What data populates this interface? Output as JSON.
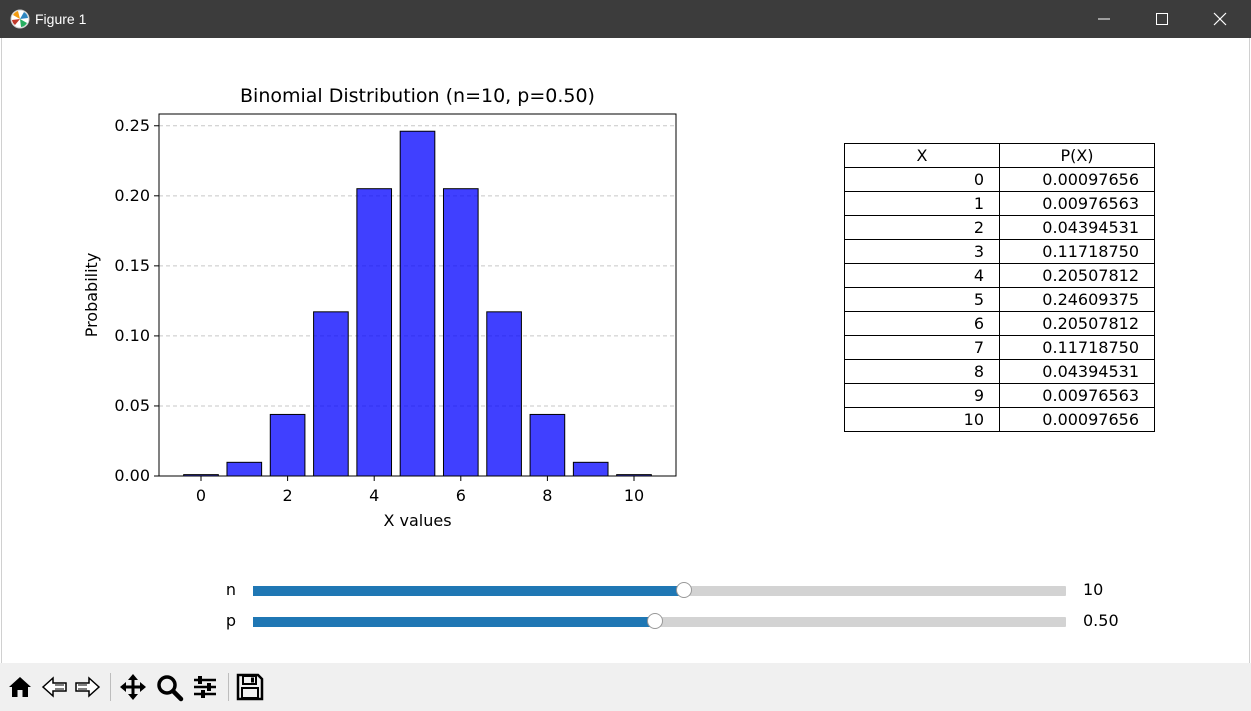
{
  "window": {
    "title": "Figure 1"
  },
  "icons": {
    "app": "matplotlib-icon",
    "minimize": "minimize-icon",
    "maximize": "maximize-icon",
    "close": "close-icon"
  },
  "chart_data": {
    "type": "bar",
    "title": "Binomial Distribution (n=10, p=0.50)",
    "xlabel": "X values",
    "ylabel": "Probability",
    "categories": [
      0,
      1,
      2,
      3,
      4,
      5,
      6,
      7,
      8,
      9,
      10
    ],
    "values": [
      0.00097656,
      0.00976563,
      0.04394531,
      0.1171875,
      0.20507812,
      0.24609375,
      0.20507812,
      0.1171875,
      0.04394531,
      0.00976563,
      0.00097656
    ],
    "xticks": [
      "0",
      "2",
      "4",
      "6",
      "8",
      "10"
    ],
    "yticks": [
      "0.00",
      "0.05",
      "0.10",
      "0.15",
      "0.20",
      "0.25"
    ],
    "xlim": [
      -0.97,
      10.97
    ],
    "ylim": [
      0,
      0.2584
    ],
    "grid": "y-dashed",
    "bar_color": "#0000ff",
    "bar_edge_color": "#000000"
  },
  "table": {
    "headers": [
      "X",
      "P(X)"
    ],
    "rows": [
      [
        "0",
        "0.00097656"
      ],
      [
        "1",
        "0.00976563"
      ],
      [
        "2",
        "0.04394531"
      ],
      [
        "3",
        "0.11718750"
      ],
      [
        "4",
        "0.20507812"
      ],
      [
        "5",
        "0.24609375"
      ],
      [
        "6",
        "0.20507812"
      ],
      [
        "7",
        "0.11718750"
      ],
      [
        "8",
        "0.04394531"
      ],
      [
        "9",
        "0.00976563"
      ],
      [
        "10",
        "0.00097656"
      ]
    ]
  },
  "sliders": {
    "n": {
      "label": "n",
      "value": "10",
      "fraction": 0.53,
      "color": "#1f77b4"
    },
    "p": {
      "label": "p",
      "value": "0.50",
      "fraction": 0.495,
      "color": "#1f77b4"
    }
  },
  "toolbar": {
    "buttons": [
      "home-icon",
      "back-icon",
      "forward-icon",
      "pan-icon",
      "zoom-icon",
      "configure-subplots-icon",
      "save-icon"
    ]
  }
}
